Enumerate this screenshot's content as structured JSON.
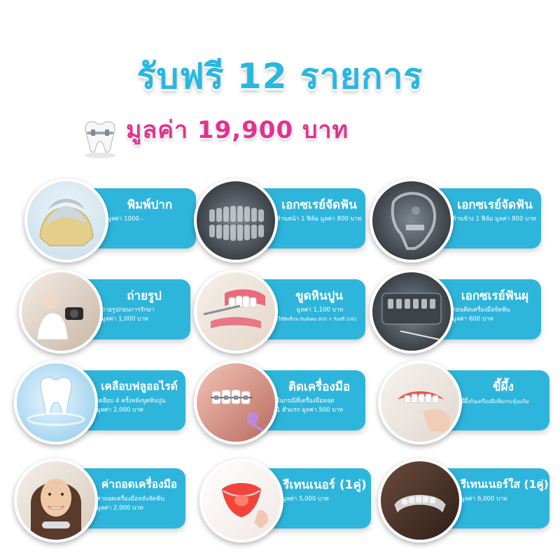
{
  "header": {
    "headline": "รับฟรี 12 รายการ",
    "subline": "มูลค่า 19,900 บาท"
  },
  "colors": {
    "accent": "#2eb5dc",
    "headline": "#2ab7e0",
    "price": "#e0338f"
  },
  "items": [
    {
      "title": "พิมพ์ปาก",
      "lines": [
        "มูลค่า 1000.-"
      ],
      "image": "dental-mold-image"
    },
    {
      "title": "เอกซเรย์จัดฟัน",
      "lines": [
        "ด้านหน้า 1 ฟิล์ม มูลค่า 800 บาท"
      ],
      "image": "panoramic-xray-image"
    },
    {
      "title": "เอกซเรย์จัดฟัน",
      "lines": [
        "ด้านข้าง 1 ฟิล์ม มูลค่า 800 บาท"
      ],
      "image": "cephalometric-xray-image"
    },
    {
      "title": "ถ่ายรูป",
      "lines": [
        "ถ่ายรูปก่อนการรักษา",
        "มูลค่า 1,000 บาท"
      ],
      "image": "dentist-photo-image"
    },
    {
      "title": "ขูดหินปูน",
      "lines": [
        "มูลค่า 1,100 บาท"
      ],
      "note": "(ใช้สิทธิ์ประกันสังคม 900 + รับฟรี 200)",
      "image": "scaling-image"
    },
    {
      "title": "เอกซเรย์ฟันผุ",
      "lines": [
        "ก่อนติดเครื่องมือจัดฟัน",
        "มูลค่า 600 บาท"
      ],
      "image": "cavity-xray-image"
    },
    {
      "title": "เคลือบฟลูออไรด์",
      "lines": [
        "เคลือบ 4 ครั้งหลังขูดหินปูน",
        "มูลค่า 2,000 บาท"
      ],
      "image": "fluoride-tooth-image"
    },
    {
      "title": "ติดเครื่องมือ",
      "lines": [
        "ในกรณีที่เครื่องมือหลุด",
        "1 ตัวแรก มูลค่า 500 บาท"
      ],
      "image": "braces-image"
    },
    {
      "title": "ขี้ผึ้ง",
      "lines": [
        "ขี้ผึ้งกันเครื่องมือทิ่มกระพุ้งแก้ม"
      ],
      "image": "orthodontic-wax-image"
    },
    {
      "title": "ค่าถอดเครื่องมือ",
      "lines": [
        "ค่าถอดเครื่องมือหลังจัดฟัน",
        "มูลค่า 2,000 บาท"
      ],
      "image": "smiling-woman-image"
    },
    {
      "title": "รีเทนเนอร์ (1คู่)",
      "lines": [
        "มูลค่า 5,000 บาท"
      ],
      "image": "retainer-image"
    },
    {
      "title": "รีเทนเนอร์ใส (1คู่)",
      "lines": [
        "มูลค่า 6,000 บาท"
      ],
      "image": "clear-retainer-image"
    }
  ]
}
